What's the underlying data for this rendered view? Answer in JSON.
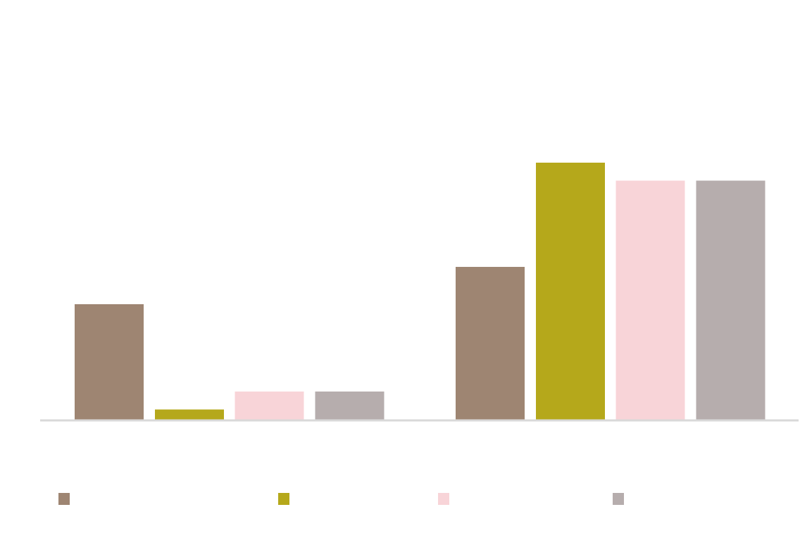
{
  "chart_data": {
    "type": "bar",
    "title": "",
    "xlabel": "",
    "ylabel": "",
    "categories": [
      "",
      ""
    ],
    "ylim": [
      0,
      100
    ],
    "grid": false,
    "legend_position": "bottom",
    "series": [
      {
        "values": [
          45,
          59.5
        ],
        "color": "#9e8572"
      },
      {
        "values": [
          4,
          100
        ],
        "color": "#b5a81b"
      },
      {
        "values": [
          11,
          93
        ],
        "color": "#f8d4d8"
      },
      {
        "values": [
          11,
          93
        ],
        "color": "#b6adad"
      }
    ],
    "axis_color": "#d9d9d9"
  }
}
